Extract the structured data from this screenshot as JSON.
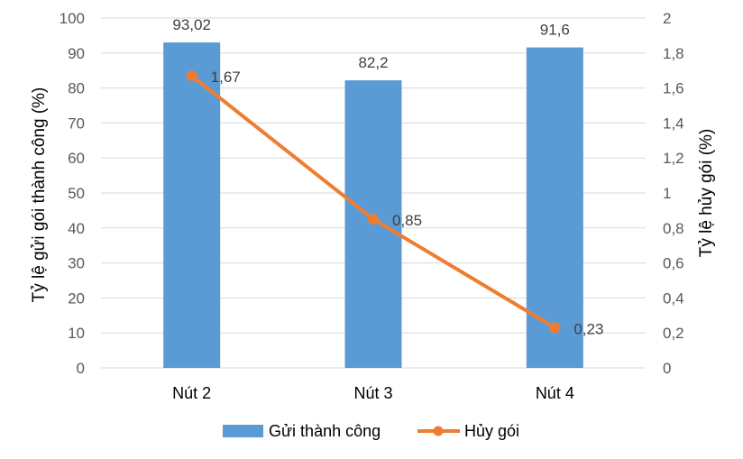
{
  "chart_data": {
    "type": "bar+line",
    "categories": [
      "Nút 2",
      "Nút 3",
      "Nút 4"
    ],
    "series": [
      {
        "name": "Gửi thành công",
        "type": "bar",
        "axis": "left",
        "values": [
          93.02,
          82.2,
          91.6
        ],
        "labels": [
          "93,02",
          "82,2",
          "91,6"
        ],
        "color": "#5b9bd5"
      },
      {
        "name": "Hủy gói",
        "type": "line",
        "axis": "right",
        "values": [
          1.67,
          0.85,
          0.23
        ],
        "labels": [
          "1,67",
          "0,85",
          "0,23"
        ],
        "color": "#ed7d31"
      }
    ],
    "y_left": {
      "label": "Tỷ lệ gửi gói thành công (%)",
      "range": [
        0,
        100
      ],
      "ticks": [
        "0",
        "10",
        "20",
        "30",
        "40",
        "50",
        "60",
        "70",
        "80",
        "90",
        "100"
      ]
    },
    "y_right": {
      "label": "Tỷ lệ hủy gói (%)",
      "range": [
        0,
        2
      ],
      "ticks": [
        "0",
        "0,2",
        "0,4",
        "0,6",
        "0,8",
        "1",
        "1,2",
        "1,4",
        "1,6",
        "1,8",
        "2"
      ]
    },
    "grid": true,
    "legend_position": "bottom"
  }
}
